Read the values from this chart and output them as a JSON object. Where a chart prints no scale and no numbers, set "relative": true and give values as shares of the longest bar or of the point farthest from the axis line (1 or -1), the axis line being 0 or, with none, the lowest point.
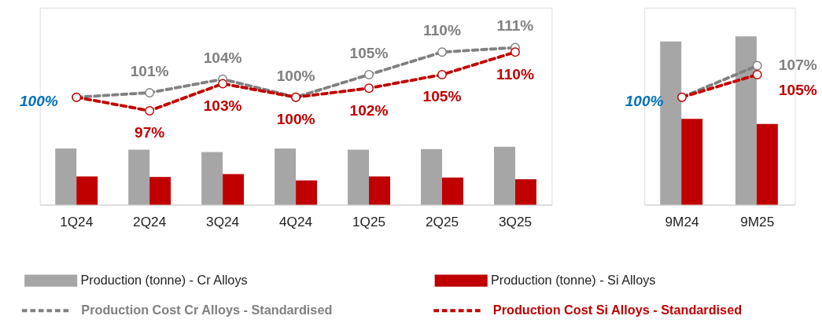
{
  "chart_data": [
    {
      "type": "bar",
      "relative": true,
      "legend": "bottom",
      "categories": [
        "1Q24",
        "2Q24",
        "3Q24",
        "4Q24",
        "1Q25",
        "2Q25",
        "3Q25"
      ],
      "series": [
        {
          "name": "Production (tonne) - Cr Alloys",
          "color": "#a6a6a6",
          "values": [
            0.97,
            0.95,
            0.91,
            0.97,
            0.95,
            0.96,
            1
          ]
        },
        {
          "name": "Production (tonne) - Si Alloys",
          "color": "#c00000",
          "values": [
            0.49,
            0.48,
            0.53,
            0.42,
            0.49,
            0.47,
            0.44
          ]
        }
      ]
    },
    {
      "type": "line",
      "legend": "bottom",
      "tick_labels": false,
      "categories": [
        "1Q24",
        "2Q24",
        "3Q24",
        "4Q24",
        "1Q25",
        "2Q25",
        "3Q25"
      ],
      "series": [
        {
          "name": "Production Cost Cr Alloys - Standardised",
          "color": "#808080",
          "line_style": "dashed",
          "marker": "circle",
          "values": [
            100,
            101,
            104,
            100,
            105,
            110,
            111
          ],
          "value_labels": [
            "100%",
            "101%",
            "104%",
            "100%",
            "105%",
            "110%",
            "111%"
          ]
        },
        {
          "name": "Production Cost Si Alloys - Standardised",
          "color": "#c00000",
          "line_style": "dashed",
          "marker": "circle",
          "values": [
            100,
            97,
            103,
            100,
            102,
            105,
            110
          ],
          "value_labels": [
            null,
            "97%",
            "103%",
            "100%",
            "102%",
            "105%",
            "110%"
          ]
        }
      ]
    },
    {
      "type": "bar",
      "relative": true,
      "categories": [
        "9M24",
        "9M25"
      ],
      "series": [
        {
          "color": "#a6a6a6",
          "values": [
            0.97,
            1
          ]
        },
        {
          "color": "#c00000",
          "values": [
            0.51,
            0.48
          ]
        }
      ]
    },
    {
      "type": "line",
      "tick_labels": false,
      "categories": [
        "9M24",
        "9M25"
      ],
      "series": [
        {
          "color": "#808080",
          "line_style": "dashed",
          "marker": "circle",
          "values": [
            100,
            107
          ],
          "value_labels": [
            "100%",
            "107%"
          ]
        },
        {
          "color": "#c00000",
          "line_style": "dashed",
          "marker": "circle",
          "values": [
            100,
            105
          ],
          "value_labels": [
            null,
            "105%"
          ]
        }
      ]
    }
  ]
}
